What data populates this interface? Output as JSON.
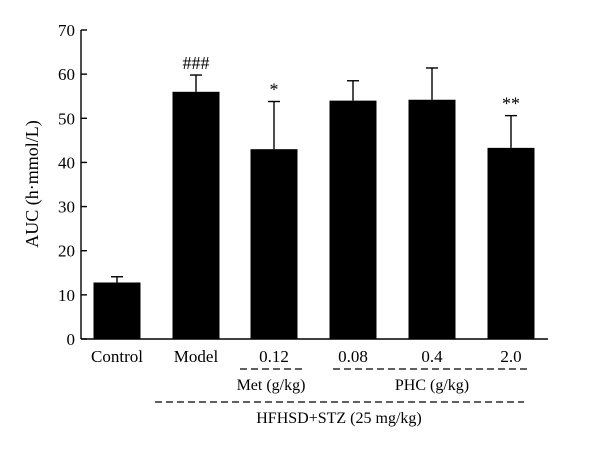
{
  "chart_data": {
    "type": "bar",
    "categories": [
      "Control",
      "Model",
      "0.12",
      "0.08",
      "0.4",
      "2.0"
    ],
    "series": [
      {
        "values": [
          12.8,
          56.0,
          43.0,
          54.0,
          54.2,
          43.3
        ],
        "errors": [
          1.3,
          3.8,
          10.8,
          4.5,
          7.2,
          7.3
        ],
        "annotations": [
          "",
          "###",
          "*",
          "",
          "",
          "**"
        ]
      }
    ],
    "ylabel": "AUC (h·mmol/L)",
    "xlabel": "",
    "ylim": [
      0,
      70
    ],
    "yticks": [
      0,
      10,
      20,
      30,
      40,
      50,
      60,
      70
    ],
    "grid": false,
    "bar_color": "#000000",
    "group_labels": {
      "met": "Met (g/kg)",
      "phc": "PHC (g/kg)",
      "hfhsd": "HFHSD+STZ (25 mg/kg)"
    }
  }
}
